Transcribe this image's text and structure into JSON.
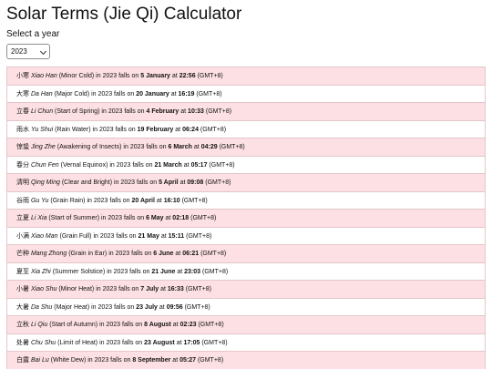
{
  "page": {
    "title": "Solar Terms (Jie Qi) Calculator",
    "year_label": "Select a year",
    "selected_year": "2023",
    "row_in": "in",
    "row_falls_on": "falls on",
    "row_at": "at",
    "timezone": "(GMT+8)"
  },
  "terms": [
    {
      "hanzi": "小寒",
      "pinyin": "Xiao Han",
      "english": "(Minor Cold)",
      "date": "5 January",
      "time": "22:56"
    },
    {
      "hanzi": "大寒",
      "pinyin": "Da Han",
      "english": "(Major Cold)",
      "date": "20 January",
      "time": "16:19"
    },
    {
      "hanzi": "立春",
      "pinyin": "Li Chun",
      "english": "(Start of Spring)",
      "date": "4 February",
      "time": "10:33"
    },
    {
      "hanzi": "雨水",
      "pinyin": "Yu Shui",
      "english": "(Rain Water)",
      "date": "19 February",
      "time": "06:24"
    },
    {
      "hanzi": "惊蛰",
      "pinyin": "Jing Zhe",
      "english": "(Awakening of Insects)",
      "date": "6 March",
      "time": "04:29"
    },
    {
      "hanzi": "春分",
      "pinyin": "Chun Fen",
      "english": "(Vernal Equinox)",
      "date": "21 March",
      "time": "05:17"
    },
    {
      "hanzi": "清明",
      "pinyin": "Qing Ming",
      "english": "(Clear and Bright)",
      "date": "5 April",
      "time": "09:08"
    },
    {
      "hanzi": "谷雨",
      "pinyin": "Gu Yu",
      "english": "(Grain Rain)",
      "date": "20 April",
      "time": "16:10"
    },
    {
      "hanzi": "立夏",
      "pinyin": "Li Xia",
      "english": "(Start of Summer)",
      "date": "6 May",
      "time": "02:18"
    },
    {
      "hanzi": "小满",
      "pinyin": "Xiao Man",
      "english": "(Grain Full)",
      "date": "21 May",
      "time": "15:11"
    },
    {
      "hanzi": "芒种",
      "pinyin": "Mang Zhong",
      "english": "(Grain in Ear)",
      "date": "6 June",
      "time": "06:21"
    },
    {
      "hanzi": "夏至",
      "pinyin": "Xia Zhi",
      "english": "(Summer Solstice)",
      "date": "21 June",
      "time": "23:03"
    },
    {
      "hanzi": "小暑",
      "pinyin": "Xiao Shu",
      "english": "(Minor Heat)",
      "date": "7 July",
      "time": "16:33"
    },
    {
      "hanzi": "大暑",
      "pinyin": "Da Shu",
      "english": "(Major Heat)",
      "date": "23 July",
      "time": "09:56"
    },
    {
      "hanzi": "立秋",
      "pinyin": "Li Qiu",
      "english": "(Start of Autumn)",
      "date": "8 August",
      "time": "02:23"
    },
    {
      "hanzi": "处暑",
      "pinyin": "Chu Shu",
      "english": "(Limit of Heat)",
      "date": "23 August",
      "time": "17:05"
    },
    {
      "hanzi": "白露",
      "pinyin": "Bai Lu",
      "english": "(White Dew)",
      "date": "8 September",
      "time": "05:27"
    }
  ],
  "colors": {
    "odd_row": "#fde0e3",
    "even_row": "#ffffff",
    "row_border": "#e3c6c9"
  }
}
